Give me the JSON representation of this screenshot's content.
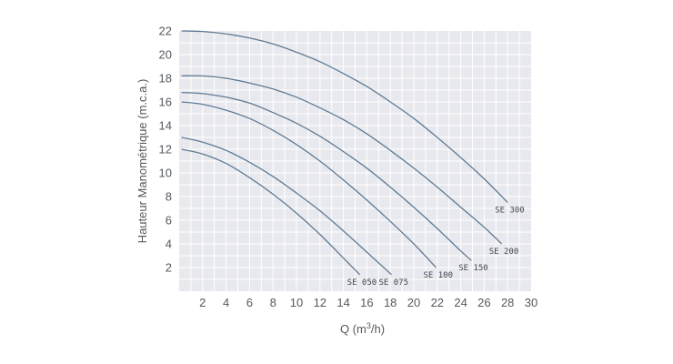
{
  "chart_data": {
    "type": "line",
    "title": "",
    "xlabel_prefix": "Q (m",
    "xlabel_sup": "3",
    "xlabel_suffix": "/h)",
    "ylabel": "Hauteur Manométrique (m.c.a.)",
    "xlim": [
      0,
      30
    ],
    "ylim": [
      0,
      22
    ],
    "x_ticks": [
      2,
      4,
      6,
      8,
      10,
      12,
      14,
      16,
      18,
      20,
      22,
      24,
      26,
      28,
      30
    ],
    "y_ticks": [
      2,
      4,
      6,
      8,
      10,
      12,
      14,
      16,
      18,
      20,
      22
    ],
    "grid": true,
    "colors": {
      "plot_background": "#e8e9ee",
      "grid": "#ffffff",
      "curve": "#5f7a93",
      "text": "#555a60"
    },
    "series": [
      {
        "name": "SE 050",
        "points": [
          [
            0.2,
            12.0
          ],
          [
            2,
            11.6
          ],
          [
            4,
            10.8
          ],
          [
            6,
            9.6
          ],
          [
            8,
            8.2
          ],
          [
            10,
            6.6
          ],
          [
            12,
            4.8
          ],
          [
            14,
            2.8
          ],
          [
            15.4,
            1.4
          ]
        ]
      },
      {
        "name": "SE 075",
        "points": [
          [
            0.2,
            13.0
          ],
          [
            2,
            12.6
          ],
          [
            4,
            11.9
          ],
          [
            6,
            10.9
          ],
          [
            8,
            9.7
          ],
          [
            10,
            8.3
          ],
          [
            12,
            6.8
          ],
          [
            14,
            5.1
          ],
          [
            16,
            3.3
          ],
          [
            18.1,
            1.4
          ]
        ]
      },
      {
        "name": "SE 100",
        "points": [
          [
            0.2,
            16.0
          ],
          [
            2,
            15.8
          ],
          [
            4,
            15.3
          ],
          [
            6,
            14.6
          ],
          [
            8,
            13.6
          ],
          [
            10,
            12.4
          ],
          [
            12,
            11.0
          ],
          [
            14,
            9.4
          ],
          [
            16,
            7.7
          ],
          [
            18,
            5.9
          ],
          [
            20,
            4.0
          ],
          [
            21.9,
            2.0
          ]
        ]
      },
      {
        "name": "SE 150",
        "points": [
          [
            0.2,
            16.8
          ],
          [
            2,
            16.7
          ],
          [
            4,
            16.4
          ],
          [
            6,
            15.9
          ],
          [
            8,
            15.1
          ],
          [
            10,
            14.2
          ],
          [
            12,
            13.1
          ],
          [
            14,
            11.8
          ],
          [
            16,
            10.4
          ],
          [
            18,
            8.8
          ],
          [
            20,
            7.1
          ],
          [
            22,
            5.3
          ],
          [
            24,
            3.4
          ],
          [
            24.9,
            2.6
          ]
        ]
      },
      {
        "name": "SE 200",
        "points": [
          [
            0.2,
            18.2
          ],
          [
            2,
            18.2
          ],
          [
            4,
            18.0
          ],
          [
            6,
            17.6
          ],
          [
            8,
            17.1
          ],
          [
            10,
            16.4
          ],
          [
            12,
            15.5
          ],
          [
            14,
            14.5
          ],
          [
            16,
            13.3
          ],
          [
            18,
            11.9
          ],
          [
            20,
            10.4
          ],
          [
            22,
            8.8
          ],
          [
            24,
            7.1
          ],
          [
            26,
            5.4
          ],
          [
            27.5,
            4.0
          ]
        ]
      },
      {
        "name": "SE 300",
        "points": [
          [
            0.2,
            22.0
          ],
          [
            2,
            21.95
          ],
          [
            4,
            21.75
          ],
          [
            6,
            21.4
          ],
          [
            8,
            20.9
          ],
          [
            10,
            20.2
          ],
          [
            12,
            19.4
          ],
          [
            14,
            18.4
          ],
          [
            16,
            17.3
          ],
          [
            18,
            16.0
          ],
          [
            20,
            14.6
          ],
          [
            22,
            13.0
          ],
          [
            24,
            11.3
          ],
          [
            26,
            9.5
          ],
          [
            28,
            7.5
          ]
        ]
      }
    ]
  }
}
